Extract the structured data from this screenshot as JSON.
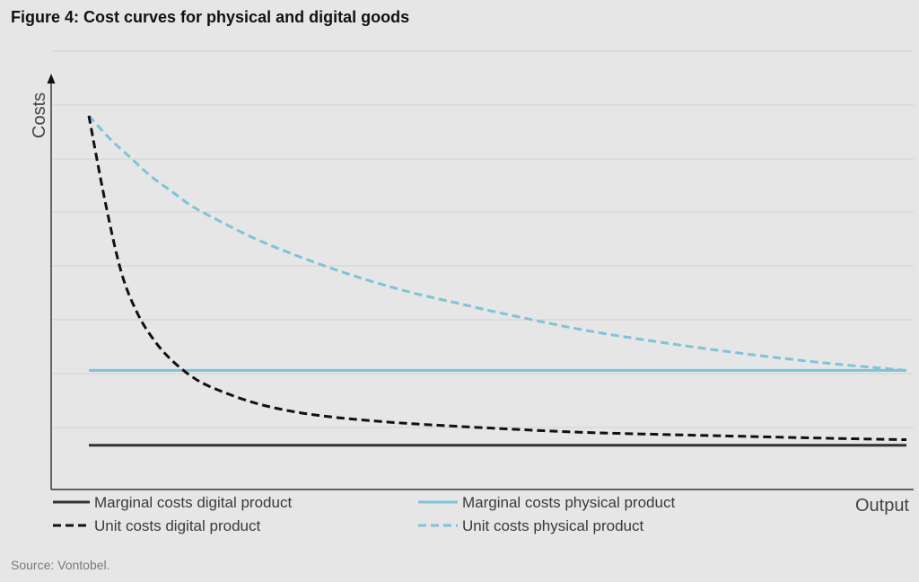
{
  "figure": {
    "title": "Figure 4: Cost curves for physical and digital goods",
    "source": "Source: Vontobel."
  },
  "chart_data": {
    "type": "line",
    "title": "Figure 4: Cost curves for physical and digital goods",
    "xlabel": "Output",
    "ylabel": "Costs",
    "xlim": [
      0,
      100
    ],
    "ylim": [
      0,
      100
    ],
    "grid": true,
    "legend_position": "bottom",
    "series": [
      {
        "name": "Marginal costs digital product",
        "color": "#333333",
        "dash": "solid",
        "x": [
          0,
          100
        ],
        "values": [
          7,
          7
        ]
      },
      {
        "name": "Marginal costs physical product",
        "color": "#7ec4d8",
        "dash": "solid",
        "x": [
          0,
          100
        ],
        "values": [
          27,
          27
        ]
      },
      {
        "name": "Unit costs digital product",
        "color": "#111111",
        "dash": "dashed",
        "x": [
          0,
          2,
          4,
          6,
          8,
          10,
          12.5,
          15,
          20,
          25,
          30,
          35,
          40,
          50,
          60,
          70,
          80,
          90,
          100
        ],
        "values": [
          95,
          72,
          53,
          42,
          35,
          30,
          25.5,
          22.5,
          18.5,
          16,
          14.5,
          13.5,
          12.7,
          11.5,
          10.5,
          9.9,
          9.4,
          8.9,
          8.5
        ]
      },
      {
        "name": "Unit costs physical product",
        "color": "#7ec4d8",
        "dash": "dashed",
        "x": [
          0,
          2.5,
          5,
          7.5,
          10,
          12.5,
          15,
          20,
          25,
          30,
          35,
          40,
          45,
          50,
          60,
          70,
          80,
          90,
          100
        ],
        "values": [
          95,
          89,
          84,
          79,
          75,
          71,
          68,
          62.5,
          58,
          54,
          50.5,
          47.5,
          45,
          42.5,
          38,
          34.5,
          31.5,
          29,
          27
        ]
      }
    ]
  }
}
